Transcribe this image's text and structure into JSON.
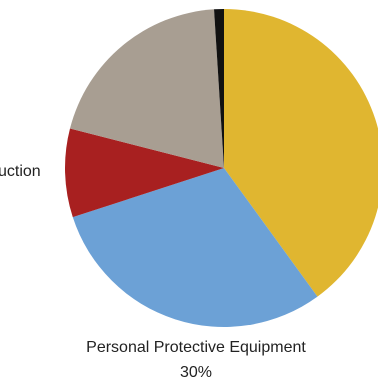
{
  "chart_data": {
    "type": "pie",
    "start_angle_deg": 0,
    "direction": "clockwise",
    "slices": [
      {
        "label": "",
        "value": 40,
        "color": "#E0B630"
      },
      {
        "label": "Personal Protective Equipment",
        "value": 30,
        "color": "#6CA1D6"
      },
      {
        "label": "",
        "value": 9,
        "color": "#A82020"
      },
      {
        "label": "",
        "value": 20,
        "color": "#A89E92"
      },
      {
        "label": "",
        "value": 1,
        "color": "#111111"
      }
    ],
    "labels": [
      {
        "slice": 1,
        "name": "Personal Protective Equipment",
        "percent": "30%"
      },
      {
        "slice": 2,
        "name": "uction",
        "percent": ""
      }
    ]
  }
}
